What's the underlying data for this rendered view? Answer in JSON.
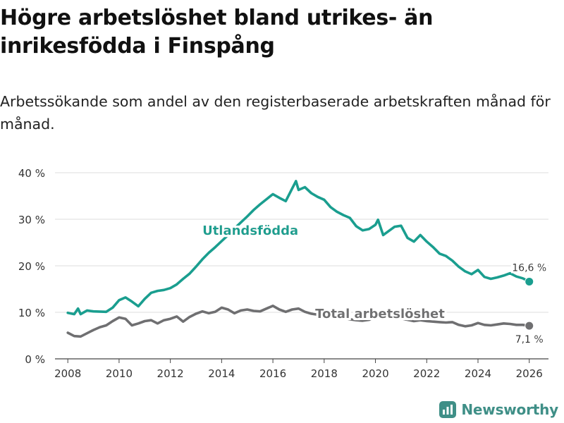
{
  "header": {
    "title": "Högre arbetslöshet bland utrikes- än inrikesfödda i Finspång",
    "subtitle": "Arbetssökande som andel av den registerbaserade arbetskraften månad för månad."
  },
  "brand": {
    "name": "Newsworthy",
    "icon": "newsworthy-logo-icon"
  },
  "colors": {
    "foreign_born": "#1a9e8f",
    "total": "#6f6f71",
    "grid": "#dddddd",
    "axis": "#444444",
    "brand": "#3f8f87"
  },
  "chart_data": {
    "type": "line",
    "title": "Högre arbetslöshet bland utrikes- än inrikesfödda i Finspång",
    "subtitle": "Arbetssökande som andel av den registerbaserade arbetskraften månad för månad.",
    "xlabel": "",
    "ylabel": "",
    "xlim": [
      2007.5,
      2026.75
    ],
    "ylim": [
      0,
      40
    ],
    "grid": true,
    "x_ticks": [
      2008,
      2010,
      2012,
      2014,
      2016,
      2018,
      2020,
      2022,
      2024,
      2026
    ],
    "x_tick_labels": [
      "2008",
      "2010",
      "2012",
      "2014",
      "2016",
      "2018",
      "2020",
      "2022",
      "2024",
      "2026"
    ],
    "y_ticks": [
      0,
      10,
      20,
      30,
      40
    ],
    "y_tick_labels": [
      "0 %",
      "10 %",
      "20 %",
      "30 %",
      "40 %"
    ],
    "series": [
      {
        "name": "Utlandsfödda",
        "color": "#1a9e8f",
        "end_label": "16,6 %",
        "points": [
          [
            2008.0,
            9.9
          ],
          [
            2008.25,
            9.6
          ],
          [
            2008.4,
            10.8
          ],
          [
            2008.5,
            9.6
          ],
          [
            2008.75,
            10.4
          ],
          [
            2009.0,
            10.2
          ],
          [
            2009.5,
            10.1
          ],
          [
            2009.75,
            11.0
          ],
          [
            2010.0,
            12.6
          ],
          [
            2010.25,
            13.2
          ],
          [
            2010.5,
            12.3
          ],
          [
            2010.75,
            11.3
          ],
          [
            2011.0,
            12.9
          ],
          [
            2011.25,
            14.2
          ],
          [
            2011.5,
            14.6
          ],
          [
            2011.75,
            14.8
          ],
          [
            2012.0,
            15.2
          ],
          [
            2012.25,
            16.0
          ],
          [
            2012.5,
            17.2
          ],
          [
            2012.75,
            18.3
          ],
          [
            2013.0,
            19.8
          ],
          [
            2013.25,
            21.4
          ],
          [
            2013.5,
            22.8
          ],
          [
            2013.75,
            24.0
          ],
          [
            2014.0,
            25.3
          ],
          [
            2014.25,
            26.6
          ],
          [
            2014.5,
            28.0
          ],
          [
            2014.75,
            29.3
          ],
          [
            2015.0,
            30.6
          ],
          [
            2015.25,
            32.0
          ],
          [
            2015.5,
            33.2
          ],
          [
            2015.75,
            34.3
          ],
          [
            2016.0,
            35.4
          ],
          [
            2016.25,
            34.6
          ],
          [
            2016.5,
            33.9
          ],
          [
            2016.75,
            36.6
          ],
          [
            2016.9,
            38.2
          ],
          [
            2017.0,
            36.3
          ],
          [
            2017.25,
            36.9
          ],
          [
            2017.5,
            35.6
          ],
          [
            2017.75,
            34.8
          ],
          [
            2018.0,
            34.2
          ],
          [
            2018.25,
            32.6
          ],
          [
            2018.5,
            31.6
          ],
          [
            2018.75,
            30.9
          ],
          [
            2019.0,
            30.3
          ],
          [
            2019.25,
            28.5
          ],
          [
            2019.5,
            27.6
          ],
          [
            2019.75,
            27.9
          ],
          [
            2020.0,
            28.8
          ],
          [
            2020.1,
            29.9
          ],
          [
            2020.3,
            26.6
          ],
          [
            2020.5,
            27.4
          ],
          [
            2020.75,
            28.4
          ],
          [
            2021.0,
            28.6
          ],
          [
            2021.25,
            26.0
          ],
          [
            2021.5,
            25.2
          ],
          [
            2021.75,
            26.6
          ],
          [
            2022.0,
            25.2
          ],
          [
            2022.25,
            24.0
          ],
          [
            2022.5,
            22.6
          ],
          [
            2022.75,
            22.1
          ],
          [
            2023.0,
            21.1
          ],
          [
            2023.25,
            19.8
          ],
          [
            2023.5,
            18.8
          ],
          [
            2023.75,
            18.2
          ],
          [
            2024.0,
            19.1
          ],
          [
            2024.25,
            17.6
          ],
          [
            2024.5,
            17.2
          ],
          [
            2024.75,
            17.5
          ],
          [
            2025.0,
            17.9
          ],
          [
            2025.25,
            18.4
          ],
          [
            2025.5,
            17.7
          ],
          [
            2025.75,
            17.3
          ],
          [
            2026.0,
            16.6
          ]
        ]
      },
      {
        "name": "Total arbetslöshet",
        "color": "#6f6f71",
        "end_label": "7,1 %",
        "points": [
          [
            2008.0,
            5.6
          ],
          [
            2008.25,
            4.9
          ],
          [
            2008.5,
            4.8
          ],
          [
            2008.75,
            5.5
          ],
          [
            2009.0,
            6.2
          ],
          [
            2009.25,
            6.8
          ],
          [
            2009.5,
            7.2
          ],
          [
            2009.75,
            8.1
          ],
          [
            2010.0,
            8.9
          ],
          [
            2010.25,
            8.6
          ],
          [
            2010.5,
            7.2
          ],
          [
            2010.75,
            7.6
          ],
          [
            2011.0,
            8.1
          ],
          [
            2011.25,
            8.3
          ],
          [
            2011.5,
            7.6
          ],
          [
            2011.75,
            8.3
          ],
          [
            2012.0,
            8.6
          ],
          [
            2012.25,
            9.1
          ],
          [
            2012.5,
            8.0
          ],
          [
            2012.75,
            9.0
          ],
          [
            2013.0,
            9.7
          ],
          [
            2013.25,
            10.2
          ],
          [
            2013.5,
            9.8
          ],
          [
            2013.75,
            10.1
          ],
          [
            2014.0,
            11.0
          ],
          [
            2014.25,
            10.6
          ],
          [
            2014.5,
            9.8
          ],
          [
            2014.75,
            10.4
          ],
          [
            2015.0,
            10.6
          ],
          [
            2015.25,
            10.3
          ],
          [
            2015.5,
            10.2
          ],
          [
            2015.75,
            10.8
          ],
          [
            2016.0,
            11.4
          ],
          [
            2016.25,
            10.6
          ],
          [
            2016.5,
            10.1
          ],
          [
            2016.75,
            10.6
          ],
          [
            2017.0,
            10.8
          ],
          [
            2017.25,
            10.1
          ],
          [
            2017.5,
            9.7
          ],
          [
            2017.75,
            9.5
          ],
          [
            2018.0,
            9.2
          ],
          [
            2018.25,
            8.9
          ],
          [
            2018.5,
            8.6
          ],
          [
            2018.75,
            8.8
          ],
          [
            2019.0,
            8.5
          ],
          [
            2019.25,
            8.3
          ],
          [
            2019.5,
            8.2
          ],
          [
            2019.75,
            8.4
          ],
          [
            2020.0,
            9.1
          ],
          [
            2020.25,
            9.0
          ],
          [
            2020.5,
            8.7
          ],
          [
            2020.75,
            8.6
          ],
          [
            2021.0,
            8.7
          ],
          [
            2021.25,
            8.4
          ],
          [
            2021.5,
            8.1
          ],
          [
            2021.75,
            8.3
          ],
          [
            2022.0,
            8.1
          ],
          [
            2022.25,
            8.0
          ],
          [
            2022.5,
            7.9
          ],
          [
            2022.75,
            7.8
          ],
          [
            2023.0,
            7.9
          ],
          [
            2023.25,
            7.3
          ],
          [
            2023.5,
            7.0
          ],
          [
            2023.75,
            7.2
          ],
          [
            2024.0,
            7.7
          ],
          [
            2024.25,
            7.3
          ],
          [
            2024.5,
            7.2
          ],
          [
            2024.75,
            7.4
          ],
          [
            2025.0,
            7.6
          ],
          [
            2025.25,
            7.5
          ],
          [
            2025.5,
            7.3
          ],
          [
            2025.75,
            7.3
          ],
          [
            2026.0,
            7.1
          ]
        ]
      }
    ],
    "annotations": [
      {
        "text": "Utlandsfödda",
        "series": "Utlandsfödda"
      },
      {
        "text": "Total arbetslöshet",
        "series": "Total arbetslöshet"
      }
    ]
  }
}
